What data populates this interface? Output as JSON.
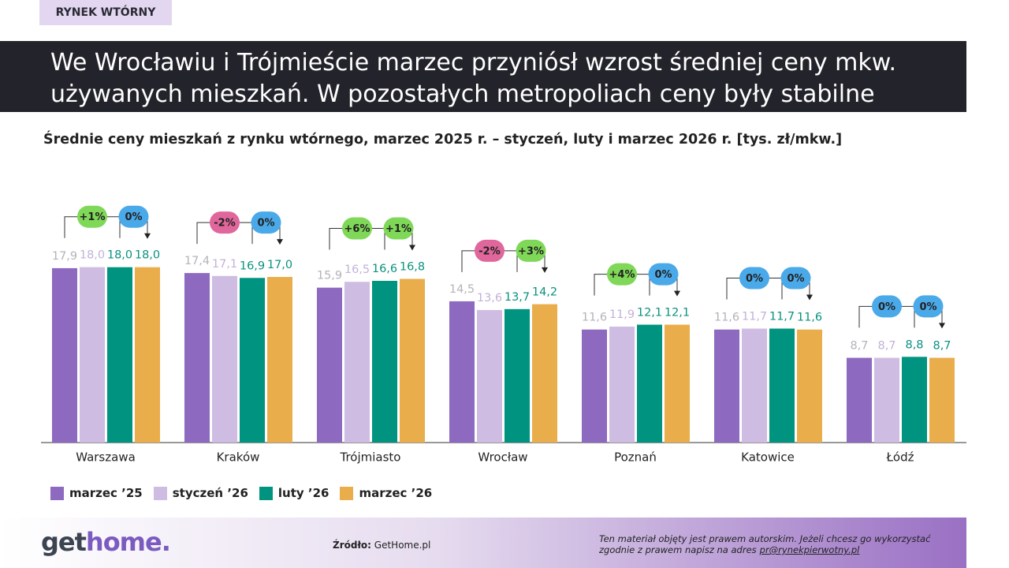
{
  "tag": "RYNEK WTÓRNY",
  "headline": [
    "We Wrocławiu i Trójmieście marzec przyniósł wzrost średniej ceny mkw.",
    "używanych mieszkań. W pozostałych metropoliach ceny były stabilne"
  ],
  "chart_data": {
    "type": "bar",
    "title": "Średnie ceny mieszkań z rynku wtórnego, marzec 2025 r. – styczeń, luty i marzec 2026 r. [tys. zł/mkw.]",
    "categories": [
      "Warszawa",
      "Kraków",
      "Trójmiasto",
      "Wrocław",
      "Poznań",
      "Katowice",
      "Łódź"
    ],
    "series": [
      {
        "name": "marzec ’25",
        "color": "#8e69c0",
        "label_color": "#b3b3bb",
        "values": [
          17.9,
          17.4,
          15.9,
          14.5,
          11.6,
          11.6,
          8.7
        ],
        "value_labels": [
          "17,9",
          "17,4",
          "15,9",
          "14,5",
          "11,6",
          "11,6",
          "8,7"
        ]
      },
      {
        "name": "styczeń ’26",
        "color": "#cfbce3",
        "label_color": "#c4b2d8",
        "values": [
          18.0,
          17.1,
          16.5,
          13.6,
          11.9,
          11.7,
          8.7
        ],
        "value_labels": [
          "18,0",
          "17,1",
          "16,5",
          "13,6",
          "11,9",
          "11,7",
          "8,7"
        ]
      },
      {
        "name": "luty ’26",
        "color": "#009480",
        "label_color": "#0a927f",
        "values": [
          18.0,
          16.9,
          16.6,
          13.7,
          12.1,
          11.7,
          8.8
        ],
        "value_labels": [
          "18,0",
          "16,9",
          "16,6",
          "13,7",
          "12,1",
          "11,7",
          "8,8"
        ]
      },
      {
        "name": "marzec ’26",
        "color": "#e9ae4b",
        "label_color": "#0a927f",
        "values": [
          18.0,
          17.0,
          16.8,
          14.2,
          12.1,
          11.6,
          8.7
        ],
        "value_labels": [
          "18,0",
          "17,0",
          "16,8",
          "14,2",
          "12,1",
          "11,6",
          "8,7"
        ]
      }
    ],
    "changes": [
      [
        {
          "value": 1,
          "label": "+1%"
        },
        {
          "value": 0,
          "label": "0%"
        }
      ],
      [
        {
          "value": -2,
          "label": "-2%"
        },
        {
          "value": 0,
          "label": "0%"
        }
      ],
      [
        {
          "value": 6,
          "label": "+6%"
        },
        {
          "value": 1,
          "label": "+1%"
        }
      ],
      [
        {
          "value": -2,
          "label": "-2%"
        },
        {
          "value": 3,
          "label": "+3%"
        }
      ],
      [
        {
          "value": 4,
          "label": "+4%"
        },
        {
          "value": 0,
          "label": "0%"
        }
      ],
      [
        {
          "value": 0,
          "label": "0%"
        },
        {
          "value": 0,
          "label": "0%"
        }
      ],
      [
        {
          "value": 0,
          "label": "0%"
        },
        {
          "value": 0,
          "label": "0%"
        }
      ]
    ]
  },
  "footer": {
    "logo": [
      "get",
      "home."
    ],
    "source_label": "Źródło:",
    "source": "GetHome.pl",
    "copyright": [
      "Ten materiał objęty jest prawem autorskim. Jeżeli chcesz go wykorzystać",
      "zgodnie z prawem napisz na adres"
    ],
    "email": "pr@rynekpierwotny.pl"
  }
}
